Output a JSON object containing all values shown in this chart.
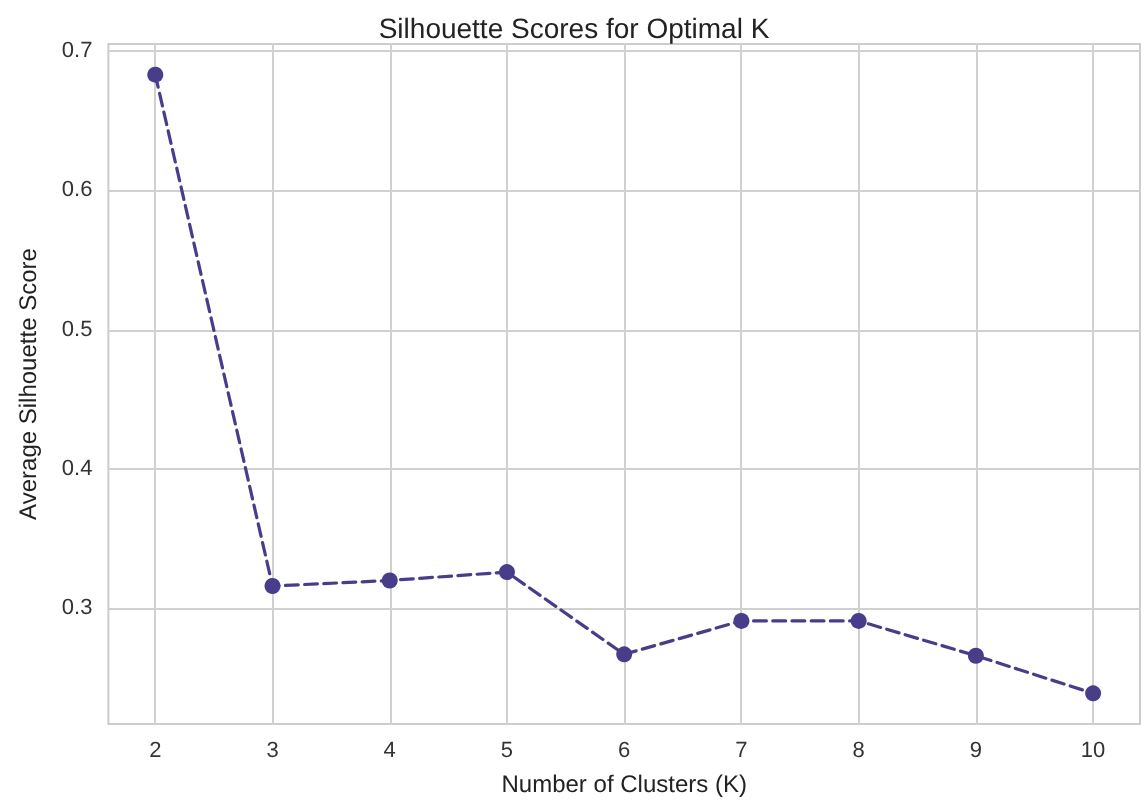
{
  "chart_data": {
    "type": "line",
    "title": "Silhouette Scores for Optimal K",
    "xlabel": "Number of Clusters (K)",
    "ylabel": "Average Silhouette Score",
    "x": [
      2,
      3,
      4,
      5,
      6,
      7,
      8,
      9,
      10
    ],
    "series": [
      {
        "color": "#483d8b",
        "values": [
          0.683,
          0.316,
          0.32,
          0.326,
          0.267,
          0.291,
          0.291,
          0.266,
          0.239
        ]
      }
    ],
    "xlim": [
      1.6,
      10.4
    ],
    "xticks": [
      2,
      3,
      4,
      5,
      6,
      7,
      8,
      9,
      10
    ],
    "ylim": [
      0.217,
      0.705
    ],
    "yticks": [
      0.3,
      0.4,
      0.5,
      0.6,
      0.7
    ],
    "grid": true,
    "marker": "circle",
    "line_style": "dashed"
  }
}
